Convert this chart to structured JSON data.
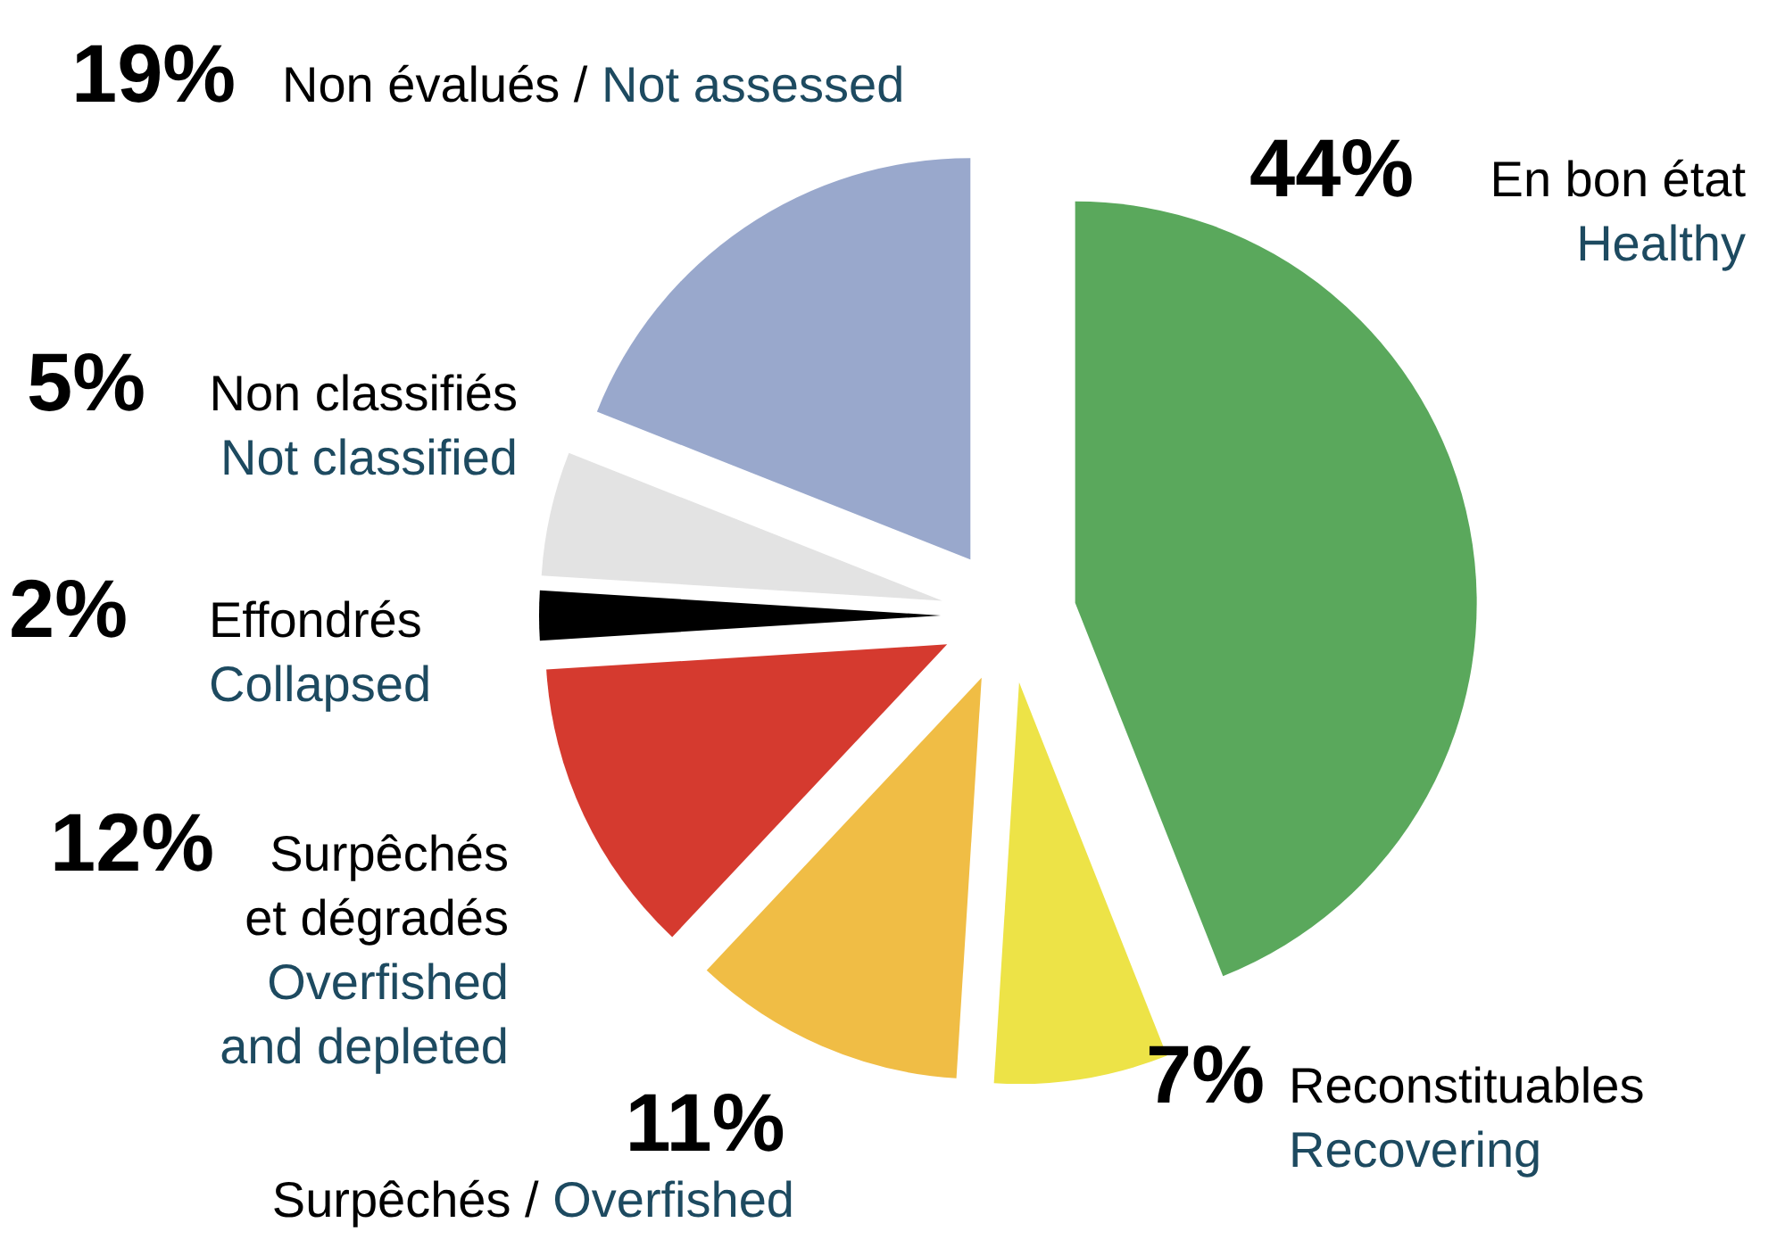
{
  "chart_data": {
    "type": "pie",
    "categories": [
      "En bon état\nHealthy",
      "Reconstituables\nRecovering",
      "Surpêchés / Overfished",
      "Surpêchés\net dégradés\nOverfished\nand depleted",
      "Effondrés\nCollapsed",
      "Non classifiés\nNot classified",
      "Non évalués / Not assessed"
    ],
    "values": [
      44,
      7,
      11,
      12,
      2,
      5,
      19
    ],
    "value_labels": [
      "44%",
      "7%",
      "11%",
      "12%",
      "2%",
      "5%",
      "19%"
    ],
    "colors": [
      "#5aa85c",
      "#ede347",
      "#f0bd45",
      "#d53a2f",
      "#000000",
      "#e3e3e3",
      "#99a8cc"
    ]
  }
}
